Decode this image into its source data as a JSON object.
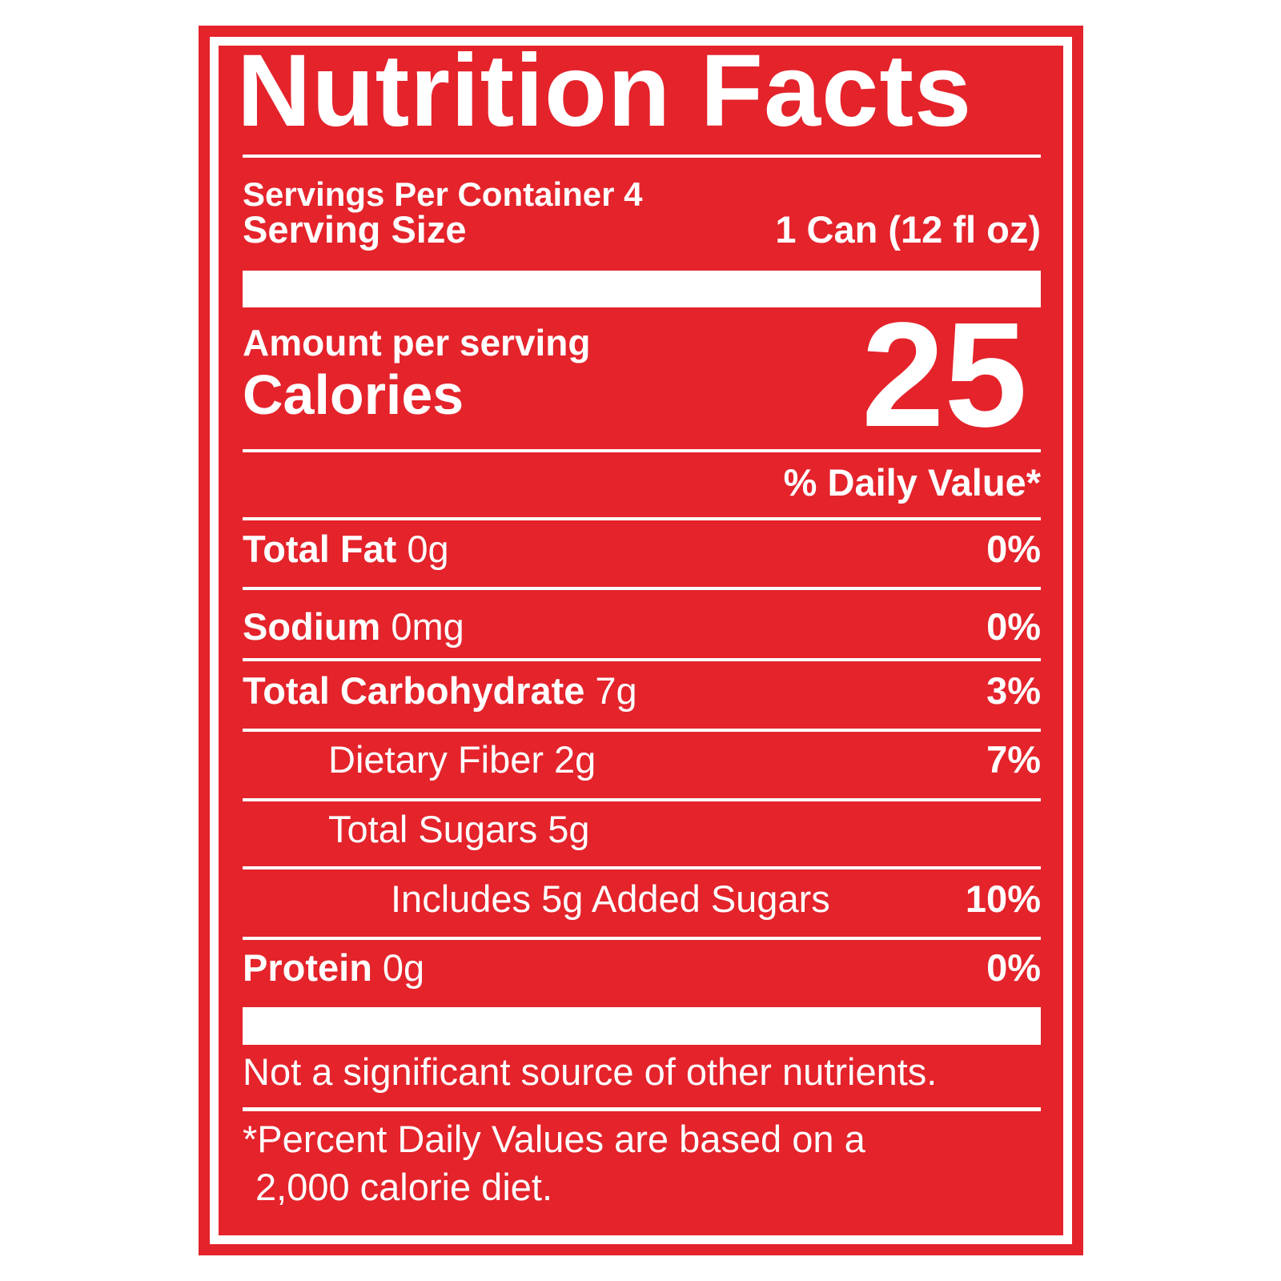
{
  "label": {
    "title": "Nutrition Facts",
    "servings_per_container": "Servings Per Container 4",
    "serving_size_label": "Serving Size",
    "serving_size_value": "1 Can (12 fl oz)",
    "amount_per_serving": "Amount per serving",
    "calories_label": "Calories",
    "calories_value": "25",
    "daily_value_header": "% Daily Value*",
    "rows": [
      {
        "name": "Total Fat",
        "amount": "0g",
        "dv": "0%"
      },
      {
        "name": "Sodium",
        "amount": "0mg",
        "dv": "0%"
      },
      {
        "name": "Total Carbohydrate",
        "amount": "7g",
        "dv": "3%"
      },
      {
        "name": "Dietary Fiber",
        "amount": "2g",
        "dv": "7%"
      },
      {
        "name": "Total Sugars",
        "amount": "5g",
        "dv": ""
      },
      {
        "name": "Includes 5g Added Sugars",
        "amount": "",
        "dv": "10%"
      },
      {
        "name": "Protein",
        "amount": "0g",
        "dv": "0%"
      }
    ],
    "other_nutrients_note": "Not a significant source of other nutrients.",
    "footnote_line1": "*Percent Daily Values are based on a",
    "footnote_line2": "2,000 calorie diet.",
    "colors": {
      "label_red": "#e4232b",
      "text_white": "#ffffff",
      "page_background": "#ffffff"
    }
  }
}
